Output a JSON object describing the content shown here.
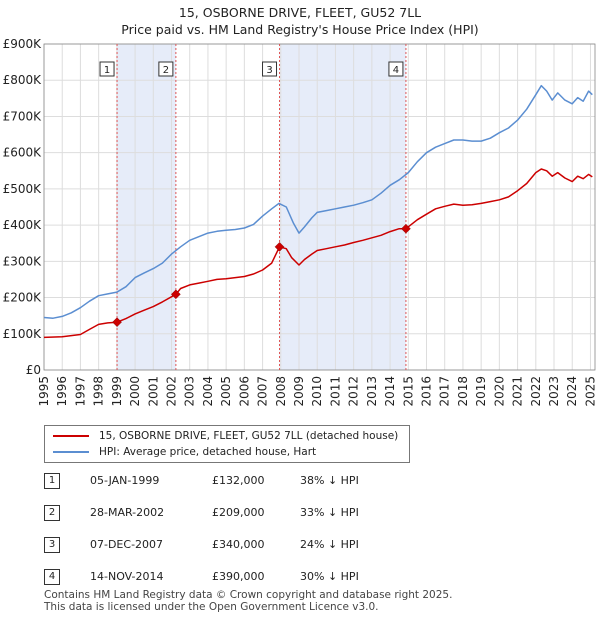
{
  "title_line1": "15, OSBORNE DRIVE, FLEET, GU52 7LL",
  "title_line2": "Price paid vs. HM Land Registry's House Price Index (HPI)",
  "colors": {
    "property": "#cc0000",
    "hpi": "#5b8ed1",
    "shade": "#dde6f7",
    "marker_line": "#dd5555",
    "grid": "#dddddd"
  },
  "chart_data": {
    "type": "line",
    "title": "Price paid vs. HM Land Registry's House Price Index (HPI)",
    "xlabel": "",
    "ylabel": "",
    "xlim": [
      1995.0,
      2025.25
    ],
    "ylim": [
      0,
      900000
    ],
    "grid": true,
    "y_ticks": [
      0,
      100000,
      200000,
      300000,
      400000,
      500000,
      600000,
      700000,
      800000,
      900000
    ],
    "y_tick_labels": [
      "£0",
      "£100K",
      "£200K",
      "£300K",
      "£400K",
      "£500K",
      "£600K",
      "£700K",
      "£800K",
      "£900K"
    ],
    "x_tick_labels": [
      "1995",
      "1996",
      "1997",
      "1998",
      "1999",
      "2000",
      "2001",
      "2002",
      "2003",
      "2004",
      "2005",
      "2006",
      "2007",
      "2008",
      "2009",
      "2010",
      "2011",
      "2012",
      "2013",
      "2014",
      "2015",
      "2016",
      "2017",
      "2018",
      "2019",
      "2020",
      "2021",
      "2022",
      "2023",
      "2024",
      "2025"
    ],
    "shaded_periods": [
      [
        1999.01,
        2002.24
      ],
      [
        2007.93,
        2014.87
      ]
    ],
    "series": [
      {
        "name": "15, OSBORNE DRIVE, FLEET, GU52 7LL (detached house)",
        "color": "#cc0000",
        "x": [
          1995.0,
          1996.0,
          1997.0,
          1997.5,
          1998.0,
          1998.5,
          1999.01,
          1999.5,
          2000.0,
          2000.5,
          2001.0,
          2001.5,
          2002.24,
          2002.5,
          2003.0,
          2003.5,
          2004.0,
          2004.5,
          2005.0,
          2005.5,
          2006.0,
          2006.5,
          2007.0,
          2007.5,
          2007.93,
          2008.3,
          2008.6,
          2009.0,
          2009.3,
          2009.7,
          2010.0,
          2010.5,
          2011.0,
          2011.5,
          2012.0,
          2012.5,
          2013.0,
          2013.5,
          2014.0,
          2014.5,
          2014.87,
          2015.5,
          2016.0,
          2016.5,
          2017.0,
          2017.5,
          2018.0,
          2018.5,
          2019.0,
          2019.5,
          2020.0,
          2020.5,
          2021.0,
          2021.5,
          2022.0,
          2022.3,
          2022.6,
          2022.9,
          2023.2,
          2023.6,
          2024.0,
          2024.3,
          2024.6,
          2024.9,
          2025.1
        ],
        "values": [
          90000,
          92000,
          98000,
          112000,
          126000,
          130000,
          132000,
          142000,
          155000,
          165000,
          175000,
          188000,
          209000,
          225000,
          235000,
          240000,
          245000,
          250000,
          252000,
          255000,
          258000,
          265000,
          276000,
          295000,
          340000,
          335000,
          310000,
          290000,
          305000,
          320000,
          330000,
          335000,
          340000,
          345000,
          352000,
          358000,
          365000,
          372000,
          382000,
          390000,
          390000,
          415000,
          430000,
          445000,
          452000,
          458000,
          455000,
          456000,
          460000,
          465000,
          470000,
          478000,
          495000,
          515000,
          545000,
          555000,
          550000,
          535000,
          545000,
          530000,
          520000,
          535000,
          528000,
          540000,
          533000
        ]
      },
      {
        "name": "HPI: Average price, detached house, Hart",
        "color": "#5b8ed1",
        "x": [
          1995.0,
          1995.5,
          1996.0,
          1996.5,
          1997.0,
          1997.5,
          1998.0,
          1998.5,
          1999.0,
          1999.5,
          2000.0,
          2000.5,
          2001.0,
          2001.5,
          2002.0,
          2002.5,
          2003.0,
          2003.5,
          2004.0,
          2004.5,
          2005.0,
          2005.5,
          2006.0,
          2006.5,
          2007.0,
          2007.5,
          2007.9,
          2008.3,
          2008.7,
          2009.0,
          2009.3,
          2009.7,
          2010.0,
          2010.5,
          2011.0,
          2011.5,
          2012.0,
          2012.5,
          2013.0,
          2013.5,
          2014.0,
          2014.5,
          2015.0,
          2015.5,
          2016.0,
          2016.5,
          2017.0,
          2017.5,
          2018.0,
          2018.5,
          2019.0,
          2019.5,
          2020.0,
          2020.5,
          2021.0,
          2021.5,
          2022.0,
          2022.3,
          2022.6,
          2022.9,
          2023.2,
          2023.6,
          2024.0,
          2024.3,
          2024.6,
          2024.9,
          2025.1
        ],
        "values": [
          145000,
          143000,
          148000,
          158000,
          172000,
          190000,
          205000,
          210000,
          215000,
          230000,
          255000,
          268000,
          280000,
          295000,
          320000,
          340000,
          358000,
          368000,
          378000,
          383000,
          386000,
          388000,
          392000,
          402000,
          425000,
          445000,
          460000,
          450000,
          405000,
          378000,
          395000,
          420000,
          435000,
          440000,
          445000,
          450000,
          455000,
          462000,
          470000,
          488000,
          510000,
          525000,
          545000,
          575000,
          600000,
          615000,
          625000,
          635000,
          635000,
          632000,
          632000,
          640000,
          655000,
          668000,
          690000,
          720000,
          760000,
          785000,
          770000,
          745000,
          765000,
          745000,
          735000,
          752000,
          742000,
          770000,
          760000
        ]
      }
    ],
    "transactions": [
      {
        "label": "1",
        "x": 1999.01,
        "value": 132000
      },
      {
        "label": "2",
        "x": 2002.24,
        "value": 209000
      },
      {
        "label": "3",
        "x": 2007.93,
        "value": 340000
      },
      {
        "label": "4",
        "x": 2014.87,
        "value": 390000
      }
    ]
  },
  "legend": {
    "property_label": "15, OSBORNE DRIVE, FLEET, GU52 7LL (detached house)",
    "hpi_label": "HPI: Average price, detached house, Hart"
  },
  "table": [
    {
      "num": "1",
      "date": "05-JAN-1999",
      "price": "£132,000",
      "hpi": "38% ↓ HPI"
    },
    {
      "num": "2",
      "date": "28-MAR-2002",
      "price": "£209,000",
      "hpi": "33% ↓ HPI"
    },
    {
      "num": "3",
      "date": "07-DEC-2007",
      "price": "£340,000",
      "hpi": "24% ↓ HPI"
    },
    {
      "num": "4",
      "date": "14-NOV-2014",
      "price": "£390,000",
      "hpi": "30% ↓ HPI"
    }
  ],
  "footer_line1": "Contains HM Land Registry data © Crown copyright and database right 2025.",
  "footer_line2": "This data is licensed under the Open Government Licence v3.0."
}
